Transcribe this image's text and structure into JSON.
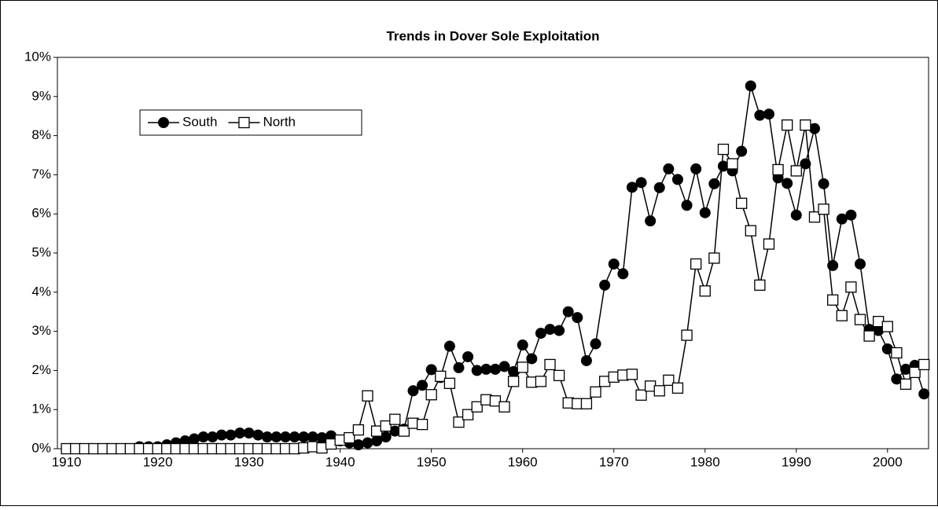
{
  "chart_data": {
    "type": "line",
    "title": "Trends in Dover Sole Exploitation",
    "x": [
      1910,
      1911,
      1912,
      1913,
      1914,
      1915,
      1916,
      1917,
      1918,
      1919,
      1920,
      1921,
      1922,
      1923,
      1924,
      1925,
      1926,
      1927,
      1928,
      1929,
      1930,
      1931,
      1932,
      1933,
      1934,
      1935,
      1936,
      1937,
      1938,
      1939,
      1940,
      1941,
      1942,
      1943,
      1944,
      1945,
      1946,
      1947,
      1948,
      1949,
      1950,
      1951,
      1952,
      1953,
      1954,
      1955,
      1956,
      1957,
      1958,
      1959,
      1960,
      1961,
      1962,
      1963,
      1964,
      1965,
      1966,
      1967,
      1968,
      1969,
      1970,
      1971,
      1972,
      1973,
      1974,
      1975,
      1976,
      1977,
      1978,
      1979,
      1980,
      1981,
      1982,
      1983,
      1984,
      1985,
      1986,
      1987,
      1988,
      1989,
      1990,
      1991,
      1992,
      1993,
      1994,
      1995,
      1996,
      1997,
      1998,
      1999,
      2000,
      2001,
      2002,
      2003,
      2004
    ],
    "series": [
      {
        "name": "South",
        "color": "#000000",
        "marker": "circle",
        "values": [
          0,
          0,
          0,
          0,
          0,
          0,
          0,
          0,
          0.05,
          0.05,
          0.05,
          0.1,
          0.15,
          0.2,
          0.25,
          0.3,
          0.3,
          0.35,
          0.35,
          0.4,
          0.4,
          0.35,
          0.3,
          0.3,
          0.3,
          0.3,
          0.3,
          0.3,
          0.28,
          0.33,
          0.2,
          0.15,
          0.1,
          0.15,
          0.2,
          0.3,
          0.45,
          0.5,
          1.48,
          1.62,
          2.02,
          1.82,
          2.62,
          2.07,
          2.35,
          2.0,
          2.03,
          2.03,
          2.1,
          1.97,
          2.65,
          2.3,
          2.95,
          3.05,
          3.02,
          3.5,
          3.35,
          2.25,
          2.68,
          4.18,
          4.72,
          4.47,
          6.68,
          6.8,
          5.82,
          6.67,
          7.15,
          6.88,
          6.22,
          7.15,
          6.03,
          6.77,
          7.22,
          7.1,
          7.6,
          9.27,
          8.52,
          8.55,
          6.92,
          6.78,
          5.97,
          7.28,
          8.18,
          6.77,
          4.68,
          5.87,
          5.97,
          4.72,
          3.05,
          3.02,
          2.55,
          1.78,
          2.03,
          2.13,
          1.4
        ]
      },
      {
        "name": "North",
        "color": "#000000",
        "marker": "square",
        "values": [
          0,
          0,
          0,
          0,
          0,
          0,
          0,
          0,
          0,
          0,
          0,
          0,
          0,
          0,
          0,
          0,
          0,
          0,
          0,
          0,
          0,
          0,
          0,
          0,
          0,
          0,
          0.02,
          0.05,
          0.02,
          0.12,
          0.22,
          0.28,
          0.48,
          1.35,
          0.45,
          0.58,
          0.75,
          0.45,
          0.65,
          0.62,
          1.38,
          1.85,
          1.67,
          0.68,
          0.87,
          1.07,
          1.25,
          1.22,
          1.07,
          1.72,
          2.08,
          1.7,
          1.72,
          2.15,
          1.87,
          1.17,
          1.15,
          1.15,
          1.45,
          1.72,
          1.83,
          1.88,
          1.9,
          1.37,
          1.6,
          1.48,
          1.75,
          1.55,
          2.9,
          4.72,
          4.03,
          4.87,
          7.65,
          7.28,
          6.27,
          5.57,
          4.18,
          5.23,
          7.13,
          8.27,
          7.1,
          8.27,
          5.92,
          6.12,
          3.8,
          3.4,
          4.13,
          3.3,
          2.88,
          3.25,
          3.12,
          2.45,
          1.65,
          1.95,
          2.15
        ]
      }
    ],
    "xlim": [
      1909,
      2004.5
    ],
    "xticks": [
      1910,
      1920,
      1930,
      1940,
      1950,
      1960,
      1970,
      1980,
      1990,
      2000
    ],
    "ylim": [
      0,
      10
    ],
    "yticks": [
      {
        "value": 0,
        "label": "0%"
      },
      {
        "value": 1,
        "label": "1%"
      },
      {
        "value": 2,
        "label": "2%"
      },
      {
        "value": 3,
        "label": "3%"
      },
      {
        "value": 4,
        "label": "4%"
      },
      {
        "value": 5,
        "label": "5%"
      },
      {
        "value": 6,
        "label": "6%"
      },
      {
        "value": 7,
        "label": "7%"
      },
      {
        "value": 8,
        "label": "8%"
      },
      {
        "value": 9,
        "label": "9%"
      },
      {
        "value": 10,
        "label": "10%"
      }
    ],
    "grid": false,
    "legend": "upper left"
  }
}
